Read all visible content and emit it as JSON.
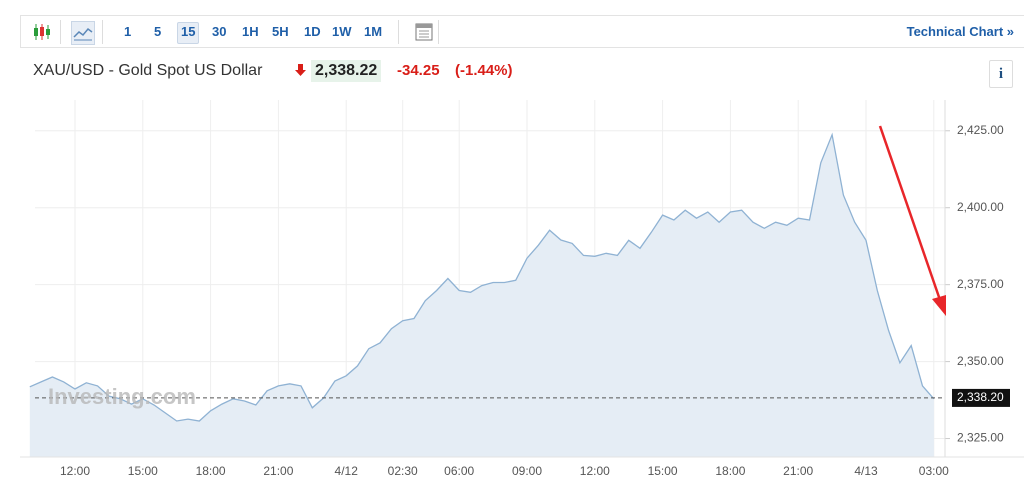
{
  "toolbar": {
    "intervals": [
      "1",
      "5",
      "15",
      "30",
      "1H",
      "5H",
      "1D",
      "1W",
      "1M"
    ],
    "technical_chart": "Technical Chart »"
  },
  "header": {
    "title": "XAU/USD - Gold Spot US Dollar",
    "price": "2,338.22",
    "change": "-34.25",
    "change_percent": "(-1.44%)",
    "info": "i"
  },
  "chart_data": {
    "type": "area",
    "watermark": "Investing.com",
    "categories": [
      null,
      null,
      null,
      null,
      "12:00",
      null,
      null,
      null,
      null,
      null,
      "15:00",
      null,
      null,
      null,
      null,
      null,
      "18:00",
      null,
      null,
      null,
      null,
      null,
      "21:00",
      null,
      null,
      null,
      null,
      null,
      "4/12",
      null,
      null,
      null,
      null,
      "02:30",
      null,
      null,
      null,
      null,
      "06:00",
      null,
      null,
      null,
      null,
      null,
      "09:00",
      null,
      null,
      null,
      null,
      null,
      "12:00",
      null,
      null,
      null,
      null,
      null,
      "15:00",
      null,
      null,
      null,
      null,
      null,
      "18:00",
      null,
      null,
      null,
      null,
      null,
      "21:00",
      null,
      null,
      null,
      null,
      null,
      "4/13",
      null,
      null,
      null,
      null,
      null,
      "03:00"
    ],
    "series": [
      {
        "name": "XAU/USD",
        "color": "#8fb2d3",
        "values": [
          2341.8,
          2343.4,
          2345.0,
          2343.4,
          2341.1,
          2343.1,
          2342.1,
          2338.8,
          2337.9,
          2336.2,
          2337.9,
          2335.9,
          2333.3,
          2330.7,
          2331.3,
          2330.7,
          2334.0,
          2336.2,
          2337.9,
          2337.2,
          2335.9,
          2340.5,
          2342.1,
          2342.8,
          2342.1,
          2335.0,
          2338.2,
          2343.7,
          2345.4,
          2348.6,
          2354.2,
          2356.1,
          2360.7,
          2363.3,
          2364.0,
          2369.8,
          2373.1,
          2377.0,
          2373.1,
          2372.5,
          2374.7,
          2375.7,
          2375.7,
          2376.4,
          2383.6,
          2387.8,
          2392.7,
          2389.5,
          2388.4,
          2384.5,
          2384.2,
          2385.2,
          2384.5,
          2389.4,
          2386.8,
          2392.0,
          2397.6,
          2396.0,
          2399.2,
          2396.6,
          2398.6,
          2395.3,
          2398.6,
          2399.2,
          2395.3,
          2393.3,
          2395.3,
          2394.3,
          2396.6,
          2396.0,
          2414.6,
          2423.7,
          2404.1,
          2395.3,
          2389.4,
          2373.1,
          2360.1,
          2349.6,
          2355.2,
          2342.1,
          2337.9
        ]
      }
    ],
    "fill_color": "#e5edf5",
    "ylim": [
      2319,
      2435
    ],
    "yticks": [
      {
        "value": 2325,
        "label": "2,325.00"
      },
      {
        "value": 2350,
        "label": "2,350.00"
      },
      {
        "value": 2375,
        "label": "2,375.00"
      },
      {
        "value": 2400,
        "label": "2,400.00"
      },
      {
        "value": 2425,
        "label": "2,425.00"
      }
    ],
    "last_price": {
      "value": 2338.2,
      "label": "2,338.20"
    },
    "grid": true
  }
}
